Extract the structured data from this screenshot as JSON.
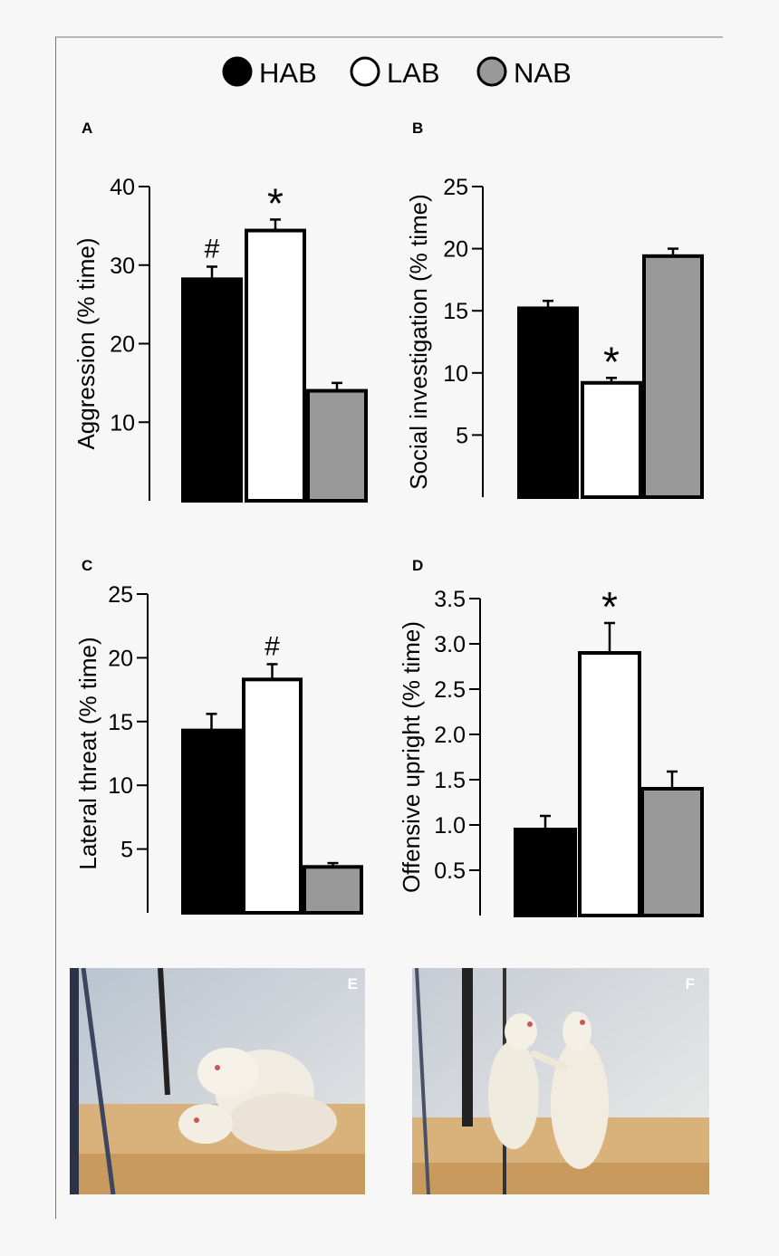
{
  "legend": [
    {
      "label": "HAB",
      "color": "#000000"
    },
    {
      "label": "LAB",
      "color": "#ffffff"
    },
    {
      "label": "NAB",
      "color": "#999999"
    }
  ],
  "chart_data": [
    {
      "type": "bar",
      "panel": "A",
      "ylabel": "Aggression (% time)",
      "categories": [
        "HAB",
        "LAB",
        "NAB"
      ],
      "values": [
        28.2,
        34.4,
        14.0
      ],
      "errors": [
        1.6,
        1.4,
        1.0
      ],
      "colors": [
        "#000000",
        "#ffffff",
        "#999999"
      ],
      "yticks": [
        10,
        20,
        30,
        40
      ],
      "annotations": [
        "#",
        "*",
        ""
      ],
      "ylim": [
        0,
        40
      ]
    },
    {
      "type": "bar",
      "panel": "B",
      "ylabel": "Social investigation (% time)",
      "categories": [
        "HAB",
        "LAB",
        "NAB"
      ],
      "values": [
        15.2,
        9.2,
        19.4
      ],
      "errors": [
        0.6,
        0.4,
        0.6
      ],
      "colors": [
        "#000000",
        "#ffffff",
        "#999999"
      ],
      "yticks": [
        5,
        10,
        15,
        20,
        25
      ],
      "annotations": [
        "",
        "*",
        ""
      ],
      "ylim": [
        0,
        25
      ]
    },
    {
      "type": "bar",
      "panel": "C",
      "ylabel": "Lateral threat (% time)",
      "categories": [
        "HAB",
        "LAB",
        "NAB"
      ],
      "values": [
        14.3,
        18.3,
        3.6
      ],
      "errors": [
        1.3,
        1.2,
        0.3
      ],
      "colors": [
        "#000000",
        "#ffffff",
        "#999999"
      ],
      "yticks": [
        5,
        10,
        15,
        20,
        25
      ],
      "annotations": [
        "",
        "#",
        ""
      ],
      "ylim": [
        0,
        25
      ]
    },
    {
      "type": "bar",
      "panel": "D",
      "ylabel": "Offensive upright (% time)",
      "categories": [
        "HAB",
        "LAB",
        "NAB"
      ],
      "values": [
        0.95,
        2.9,
        1.4
      ],
      "errors": [
        0.15,
        0.33,
        0.19
      ],
      "colors": [
        "#000000",
        "#ffffff",
        "#999999"
      ],
      "yticks": [
        0.5,
        1.0,
        1.5,
        2.0,
        2.5,
        3.0,
        3.5
      ],
      "ytick_labels": [
        "0.5",
        "1.0",
        "1.5",
        "2.0",
        "2.5",
        "3.0",
        "3.5"
      ],
      "annotations": [
        "",
        "*",
        ""
      ],
      "ylim": [
        0,
        3.5
      ]
    }
  ],
  "photos": [
    {
      "label": "E"
    },
    {
      "label": "F"
    }
  ]
}
